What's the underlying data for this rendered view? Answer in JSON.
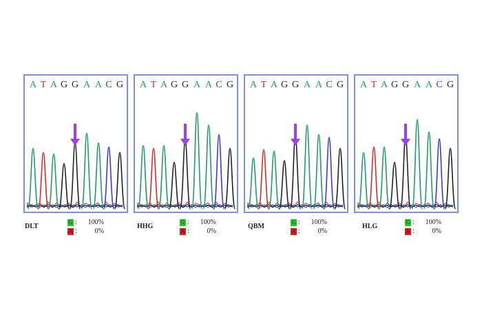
{
  "panels": [
    {
      "sample": "DLT",
      "sequence": [
        "A",
        "T",
        "A",
        "G",
        "G",
        "A",
        "A",
        "C",
        "G"
      ],
      "legend": [
        {
          "base": "G",
          "value": "100%",
          "color": "#22cc22"
        },
        {
          "base": "A",
          "value": "0%",
          "color": "#d02020"
        }
      ]
    },
    {
      "sample": "HHG",
      "sequence": [
        "A",
        "T",
        "A",
        "G",
        "G",
        "A",
        "A",
        "C",
        "G"
      ],
      "legend": [
        {
          "base": "G",
          "value": "100%",
          "color": "#22cc22"
        },
        {
          "base": "A",
          "value": "0%",
          "color": "#d02020"
        }
      ]
    },
    {
      "sample": "QBM",
      "sequence": [
        "A",
        "T",
        "A",
        "G",
        "G",
        "A",
        "A",
        "C",
        "G"
      ],
      "legend": [
        {
          "base": "G",
          "value": "100%",
          "color": "#22cc22"
        },
        {
          "base": "A",
          "value": "0%",
          "color": "#d02020"
        }
      ]
    },
    {
      "sample": "HLG",
      "sequence": [
        "A",
        "T",
        "A",
        "G",
        "G",
        "A",
        "A",
        "C",
        "G"
      ],
      "legend": [
        {
          "base": "G",
          "value": "100%",
          "color": "#22cc22"
        },
        {
          "base": "A",
          "value": "0%",
          "color": "#d02020"
        }
      ]
    }
  ],
  "base_colors": {
    "A": "#1f9a6a",
    "T": "#d62a2a",
    "G": "#222222",
    "C": "#3a3ad6"
  },
  "arrow_color": "#9b3ff0",
  "marked_position": 4
}
